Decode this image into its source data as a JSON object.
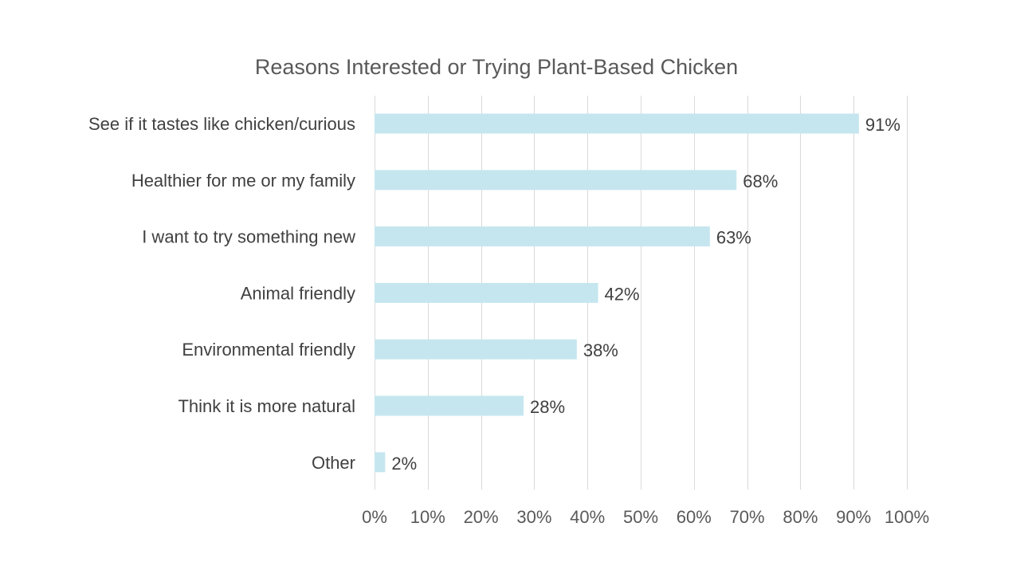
{
  "chart_data": {
    "type": "bar",
    "orientation": "horizontal",
    "title": "Reasons Interested or Trying Plant-Based Chicken",
    "categories": [
      "See if it tastes like chicken/curious",
      "Healthier for me or my family",
      "I want to try something new",
      "Animal friendly",
      "Environmental friendly",
      "Think it is more natural",
      "Other"
    ],
    "values": [
      91,
      68,
      63,
      42,
      38,
      28,
      2
    ],
    "data_labels": [
      "91%",
      "68%",
      "63%",
      "42%",
      "38%",
      "28%",
      "2%"
    ],
    "xlim": [
      0,
      100
    ],
    "x_ticks": [
      0,
      10,
      20,
      30,
      40,
      50,
      60,
      70,
      80,
      90,
      100
    ],
    "x_tick_labels": [
      "0%",
      "10%",
      "20%",
      "30%",
      "40%",
      "50%",
      "60%",
      "70%",
      "80%",
      "90%",
      "100%"
    ],
    "xlabel": "",
    "ylabel": "",
    "grid": "vertical",
    "legend": "none",
    "bar_color": "#c5e6ef"
  }
}
